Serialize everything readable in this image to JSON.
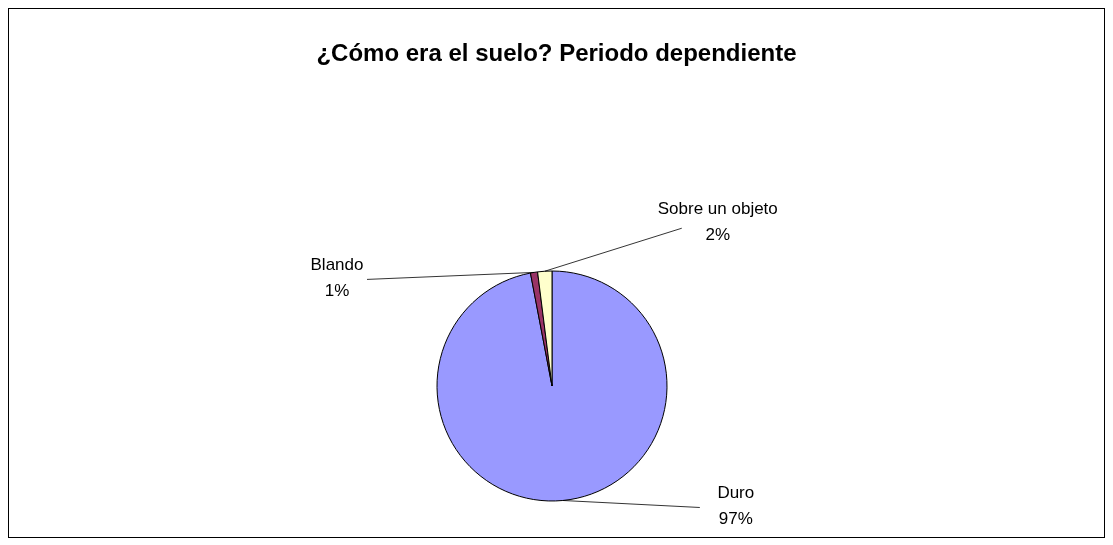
{
  "chart_data": {
    "type": "pie",
    "title": "¿Cómo era el suelo? Periodo dependiente",
    "categories": [
      "Duro",
      "Blando",
      "Sobre un objeto"
    ],
    "values": [
      97,
      1,
      2
    ],
    "value_labels": [
      "97%",
      "1%",
      "2%"
    ],
    "colors": [
      "#9999ff",
      "#993366",
      "#ffffcc"
    ]
  }
}
